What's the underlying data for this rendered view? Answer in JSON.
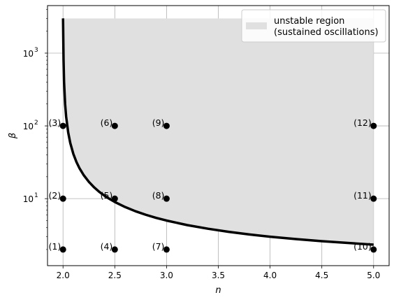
{
  "chart_data": {
    "type": "scatter",
    "title": "",
    "xlabel": "n",
    "ylabel": "β",
    "xlim": [
      1.85,
      5.15
    ],
    "ylim": [
      1.2,
      4500
    ],
    "yscale": "log",
    "grid": true,
    "legend_placement": "top-right",
    "x_ticks": [
      2.0,
      2.5,
      3.0,
      3.5,
      4.0,
      4.5,
      5.0
    ],
    "x_tick_labels": [
      "2.0",
      "2.5",
      "3.0",
      "3.5",
      "4.0",
      "4.5",
      "5.0"
    ],
    "y_ticks": [
      10,
      100,
      1000
    ],
    "y_tick_labels": [
      "10",
      "10",
      "10"
    ],
    "y_tick_exponents": [
      "1",
      "2",
      "3"
    ],
    "region": {
      "label": "unstable region",
      "label2": "(sustained oscillations)",
      "color": "#e0e0e0",
      "ymax": 3000,
      "xmax": 5.0
    },
    "curve": {
      "color": "#000000",
      "x": [
        2.0,
        2.005,
        2.01,
        2.02,
        2.03,
        2.05,
        2.07,
        2.1,
        2.13,
        2.16,
        2.2,
        2.25,
        2.3,
        2.35,
        2.4,
        2.45,
        2.5,
        2.6,
        2.7,
        2.8,
        2.9,
        3.0,
        3.2,
        3.4,
        3.6,
        3.8,
        4.0,
        4.25,
        4.5,
        4.75,
        5.0
      ],
      "y": [
        3000,
        800,
        400,
        200,
        133.7,
        81,
        58.1,
        41,
        31.8,
        26.0,
        21,
        17,
        14.3,
        12.4,
        11,
        9.9,
        9,
        7.67,
        6.71,
        6,
        5.44,
        5,
        4.33,
        3.86,
        3.5,
        3.22,
        3,
        2.78,
        2.6,
        2.46,
        2.33
      ]
    },
    "points": [
      {
        "label": "(1)",
        "x": 2.0,
        "y": 2
      },
      {
        "label": "(2)",
        "x": 2.0,
        "y": 10
      },
      {
        "label": "(3)",
        "x": 2.0,
        "y": 100
      },
      {
        "label": "(4)",
        "x": 2.5,
        "y": 2
      },
      {
        "label": "(5)",
        "x": 2.5,
        "y": 10
      },
      {
        "label": "(6)",
        "x": 2.5,
        "y": 100
      },
      {
        "label": "(7)",
        "x": 3.0,
        "y": 2
      },
      {
        "label": "(8)",
        "x": 3.0,
        "y": 10
      },
      {
        "label": "(9)",
        "x": 3.0,
        "y": 100
      },
      {
        "label": "(10)",
        "x": 5.0,
        "y": 2
      },
      {
        "label": "(11)",
        "x": 5.0,
        "y": 10
      },
      {
        "label": "(12)",
        "x": 5.0,
        "y": 100
      }
    ]
  }
}
